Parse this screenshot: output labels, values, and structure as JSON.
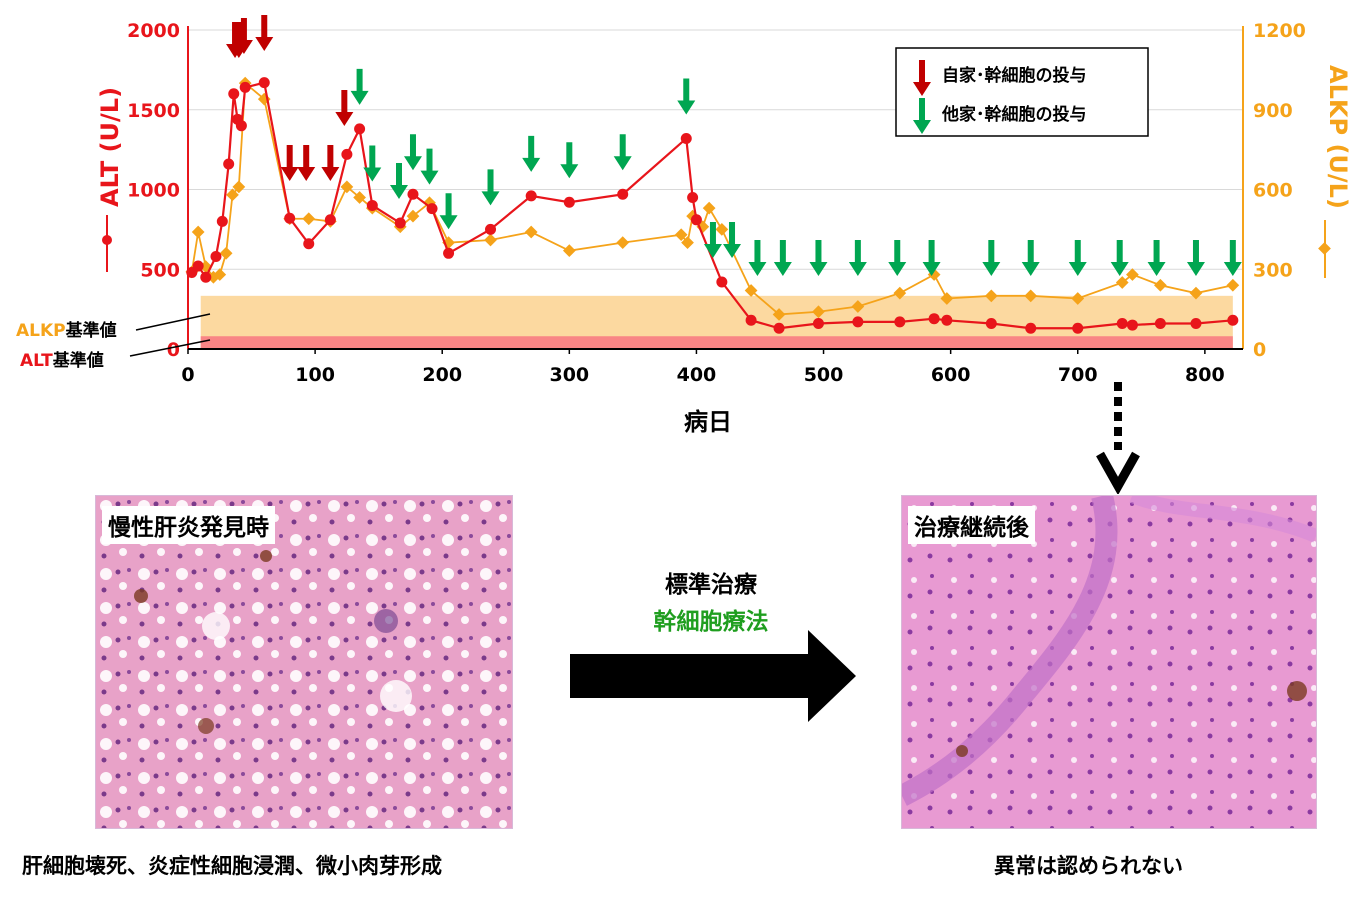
{
  "chart_data": {
    "type": "line",
    "xlabel": "病日",
    "x_ticks": [
      0,
      100,
      200,
      300,
      400,
      500,
      600,
      700,
      800
    ],
    "xlim": [
      0,
      830
    ],
    "ylabel_left": "ALT (U/L)",
    "ylim_left": [
      0,
      2000
    ],
    "y_ticks_left": [
      0,
      500,
      1000,
      1500,
      2000
    ],
    "ylabel_right": "ALKP (U/L)",
    "ylim_right": [
      0,
      1200
    ],
    "y_ticks_right": [
      0,
      300,
      600,
      900,
      1200
    ],
    "colors": {
      "alt": "#e8151b",
      "alkp": "#f5a31a",
      "autologous": "#c00000",
      "allogeneic": "#00a651"
    },
    "series": [
      {
        "axis": "left",
        "marker": "circle",
        "x": [
          3,
          8,
          14,
          22,
          27,
          32,
          36,
          39,
          42,
          45,
          60,
          80,
          95,
          112,
          125,
          135,
          145,
          167,
          177,
          192,
          205,
          238,
          270,
          300,
          342,
          392,
          397,
          400,
          420,
          443,
          465,
          496,
          527,
          560,
          587,
          597,
          632,
          663,
          700,
          735,
          743,
          765,
          793,
          822
        ],
        "y": [
          480,
          520,
          450,
          580,
          800,
          1160,
          1600,
          1440,
          1400,
          1640,
          1670,
          820,
          660,
          810,
          1220,
          1380,
          900,
          790,
          970,
          880,
          600,
          750,
          960,
          920,
          970,
          1320,
          950,
          810,
          420,
          180,
          130,
          160,
          170,
          170,
          190,
          180,
          160,
          130,
          130,
          160,
          150,
          160,
          160,
          180
        ]
      },
      {
        "axis": "right",
        "marker": "diamond",
        "x": [
          3,
          8,
          14,
          20,
          25,
          30,
          35,
          40,
          45,
          60,
          80,
          95,
          112,
          125,
          135,
          145,
          167,
          177,
          190,
          205,
          238,
          270,
          300,
          342,
          388,
          393,
          397,
          405,
          410,
          420,
          443,
          465,
          496,
          527,
          560,
          587,
          597,
          632,
          663,
          700,
          735,
          743,
          765,
          793,
          822
        ],
        "y": [
          290,
          440,
          310,
          270,
          280,
          360,
          580,
          610,
          1000,
          940,
          490,
          490,
          480,
          610,
          570,
          530,
          460,
          500,
          550,
          400,
          410,
          440,
          370,
          400,
          430,
          400,
          500,
          460,
          530,
          450,
          220,
          130,
          140,
          160,
          210,
          280,
          190,
          200,
          200,
          190,
          250,
          280,
          240,
          210,
          240
        ]
      }
    ],
    "reference_bands": [
      {
        "label_prefix": "ALKP",
        "label_suffix": "基準値",
        "axis": "right",
        "from": 0,
        "to": 200
      },
      {
        "label_prefix": "ALT",
        "label_suffix": "基準値",
        "axis": "left",
        "from": 0,
        "to": 80
      }
    ],
    "autologous_days": [
      37,
      40,
      44,
      60,
      80,
      93,
      112,
      123
    ],
    "allogeneic_days": [
      135,
      145,
      166,
      177,
      190,
      205,
      238,
      270,
      300,
      342,
      392,
      413,
      428,
      448,
      468,
      496,
      527,
      558,
      585,
      632,
      663,
      700,
      733,
      762,
      793,
      822
    ],
    "legend": {
      "autologous": "自家･幹細胞の投与",
      "allogeneic": "他家･幹細胞の投与"
    }
  },
  "bottom": {
    "left_label": "慢性肝炎発見時",
    "right_label": "治療継続後",
    "arrow_top": "標準治療",
    "arrow_bottom": "幹細胞療法",
    "left_caption": "肝細胞壊死、炎症性細胞浸潤、微小肉芽形成",
    "right_caption": "異常は認められない"
  }
}
